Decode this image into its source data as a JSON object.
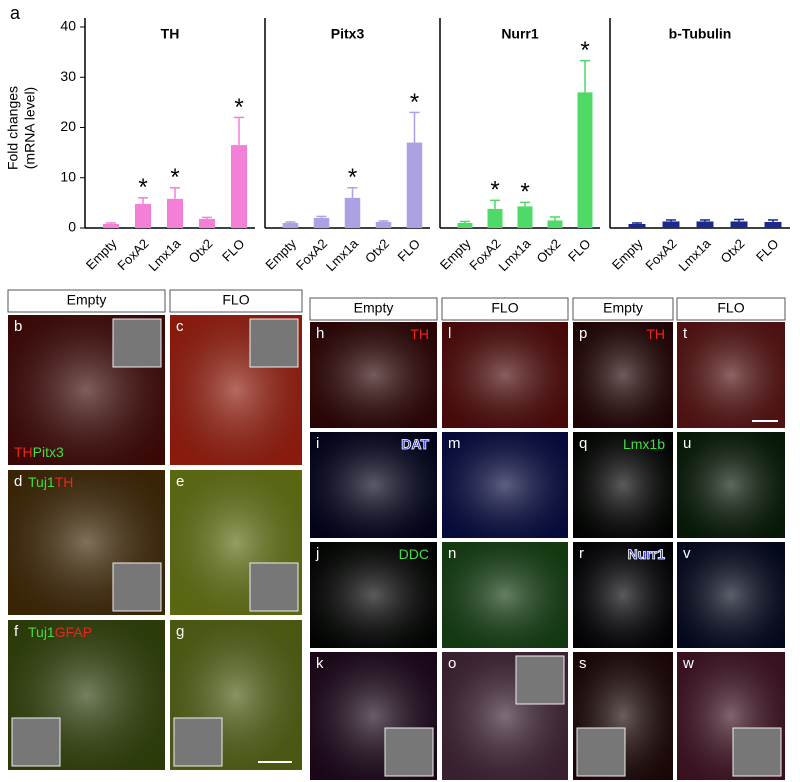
{
  "figure_label": "a",
  "chart_data": [
    {
      "type": "bar",
      "title": "TH",
      "ylabel": [
        "Fold changes",
        "(mRNA level)"
      ],
      "categories": [
        "Empty",
        "FoxA2",
        "Lmx1a",
        "Otx2",
        "FLO"
      ],
      "values": [
        0.8,
        4.8,
        5.8,
        1.8,
        16.5
      ],
      "errors": [
        0.2,
        1.2,
        2.2,
        0.3,
        5.5
      ],
      "markers": [
        null,
        "*",
        "*",
        null,
        "*"
      ],
      "color": "#f47fd6",
      "ylim": [
        0,
        40
      ],
      "yticks": [
        0,
        10,
        20,
        30,
        40
      ]
    },
    {
      "type": "bar",
      "title": "Pitx3",
      "categories": [
        "Empty",
        "FoxA2",
        "Lmx1a",
        "Otx2",
        "FLO"
      ],
      "values": [
        1.0,
        2.0,
        6.0,
        1.2,
        17
      ],
      "errors": [
        0.2,
        0.3,
        2.0,
        0.2,
        6
      ],
      "markers": [
        null,
        null,
        "*",
        null,
        "*"
      ],
      "color": "#aaa2e2",
      "ylim": [
        0,
        40
      ]
    },
    {
      "type": "bar",
      "title": "Nurr1",
      "categories": [
        "Empty",
        "FoxA2",
        "Lmx1a",
        "Otx2",
        "FLO"
      ],
      "values": [
        1.0,
        3.8,
        4.3,
        1.5,
        27
      ],
      "errors": [
        0.3,
        1.7,
        0.8,
        0.7,
        6.3
      ],
      "markers": [
        null,
        "*",
        "*",
        null,
        "*"
      ],
      "color": "#4fd966",
      "ylim": [
        0,
        40
      ]
    },
    {
      "type": "bar",
      "title": "b-Tubulin",
      "categories": [
        "Empty",
        "FoxA2",
        "Lmx1a",
        "Otx2",
        "FLO"
      ],
      "values": [
        0.8,
        1.3,
        1.3,
        1.3,
        1.2
      ],
      "errors": [
        0.2,
        0.3,
        0.3,
        0.4,
        0.4
      ],
      "markers": [
        null,
        null,
        null,
        null,
        null
      ],
      "color": "#1c2a8c",
      "ylim": [
        0,
        40
      ]
    }
  ],
  "groups": [
    {
      "headers": [
        "Empty",
        "FLO"
      ],
      "rows": [
        [
          {
            "label": "b",
            "stain": [
              {
                "text": "TH",
                "color": "#e8281c"
              },
              {
                "text": "Pitx3",
                "color": "#44dd44"
              }
            ]
          },
          {
            "label": "c"
          }
        ],
        [
          {
            "label": "d",
            "stain": [
              {
                "text": "Tuj1",
                "color": "#44dd44"
              },
              {
                "text": "TH",
                "color": "#e8281c"
              }
            ]
          },
          {
            "label": "e"
          }
        ],
        [
          {
            "label": "f",
            "stain": [
              {
                "text": "Tuj1",
                "color": "#44dd44"
              },
              {
                "text": "GFAP",
                "color": "#e8281c"
              }
            ]
          },
          {
            "label": "g"
          }
        ]
      ]
    },
    {
      "headers": [
        "Empty",
        "FLO"
      ],
      "rows": [
        [
          {
            "label": "h",
            "stain": [
              {
                "text": "TH",
                "color": "#e8281c"
              }
            ]
          },
          {
            "label": "l"
          }
        ],
        [
          {
            "label": "i",
            "stain": [
              {
                "text": "DAT",
                "color": "#2233ee"
              }
            ]
          },
          {
            "label": "m"
          }
        ],
        [
          {
            "label": "j",
            "stain": [
              {
                "text": "DDC",
                "color": "#44dd44"
              }
            ]
          },
          {
            "label": "n"
          }
        ],
        [
          {
            "label": "k"
          },
          {
            "label": "o"
          }
        ]
      ]
    },
    {
      "headers": [
        "Empty",
        "FLO"
      ],
      "rows": [
        [
          {
            "label": "p",
            "stain": [
              {
                "text": "TH",
                "color": "#e8281c"
              }
            ]
          },
          {
            "label": "t"
          }
        ],
        [
          {
            "label": "q",
            "stain": [
              {
                "text": "Lmx1b",
                "color": "#44dd44"
              }
            ]
          },
          {
            "label": "u"
          }
        ],
        [
          {
            "label": "r",
            "stain": [
              {
                "text": "Nurr1",
                "color": "#2233ee"
              }
            ]
          },
          {
            "label": "v"
          }
        ],
        [
          {
            "label": "s"
          },
          {
            "label": "w"
          }
        ]
      ]
    }
  ]
}
